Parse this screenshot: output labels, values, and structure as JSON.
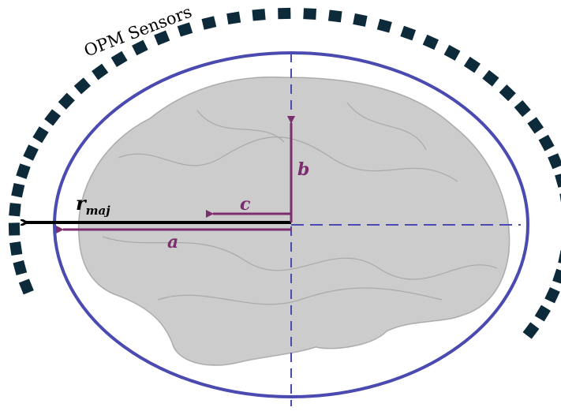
{
  "labels": {
    "sensors": "OPM Sensors",
    "r_major": "r",
    "r_major_subscript": "maj",
    "a": "a",
    "b": "b",
    "c": "c"
  }
}
